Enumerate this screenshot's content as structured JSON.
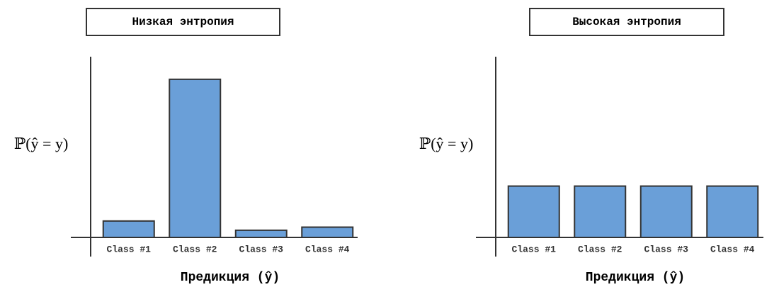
{
  "chart_data": [
    {
      "type": "bar",
      "title": "Низкая энтропия",
      "y_label": "ℙ(ŷ = y)",
      "x_label": "Предикция (ŷ)",
      "categories": [
        "Class #1",
        "Class #2",
        "Class #3",
        "Class #4"
      ],
      "values": [
        0.08,
        0.77,
        0.035,
        0.05
      ],
      "color": "#6a9fd8",
      "ylim": [
        0,
        0.88
      ]
    },
    {
      "type": "bar",
      "title": "Высокая энтропия",
      "y_label": "ℙ(ŷ = y)",
      "x_label": "Предикция (ŷ)",
      "categories": [
        "Class #1",
        "Class #2",
        "Class #3",
        "Class #4"
      ],
      "values": [
        0.25,
        0.25,
        0.25,
        0.25
      ],
      "color": "#6a9fd8",
      "ylim": [
        0,
        0.88
      ]
    }
  ]
}
